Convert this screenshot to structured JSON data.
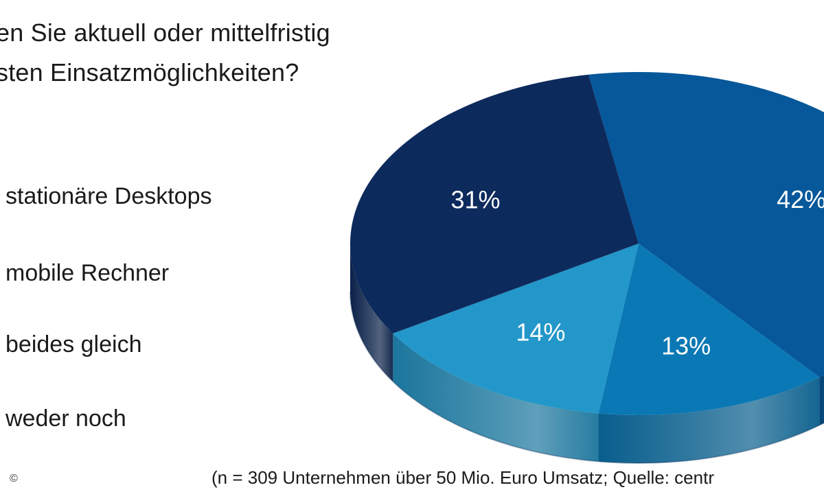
{
  "title": {
    "line1": "en Sie aktuell oder mittelfristig",
    "line2": "sten Einsatzmöglichkeiten?"
  },
  "legend": [
    "stationäre Desktops",
    "mobile Rechner",
    "beides gleich",
    "weder noch"
  ],
  "footnote": "(n = 309 Unternehmen über 50 Mio. Euro Umsatz; Quelle: centr",
  "copyright_symbol": "©",
  "chart_data": {
    "type": "pie",
    "slices": [
      {
        "label": "42%",
        "value": 42,
        "color": "#06589a"
      },
      {
        "label": "13%",
        "value": 13,
        "color": "#0a78b4"
      },
      {
        "label": "14%",
        "value": 14,
        "color": "#2397c9"
      },
      {
        "label": "31%",
        "value": 31,
        "color": "#0d2a5c"
      }
    ],
    "view": "3d-perspective"
  }
}
